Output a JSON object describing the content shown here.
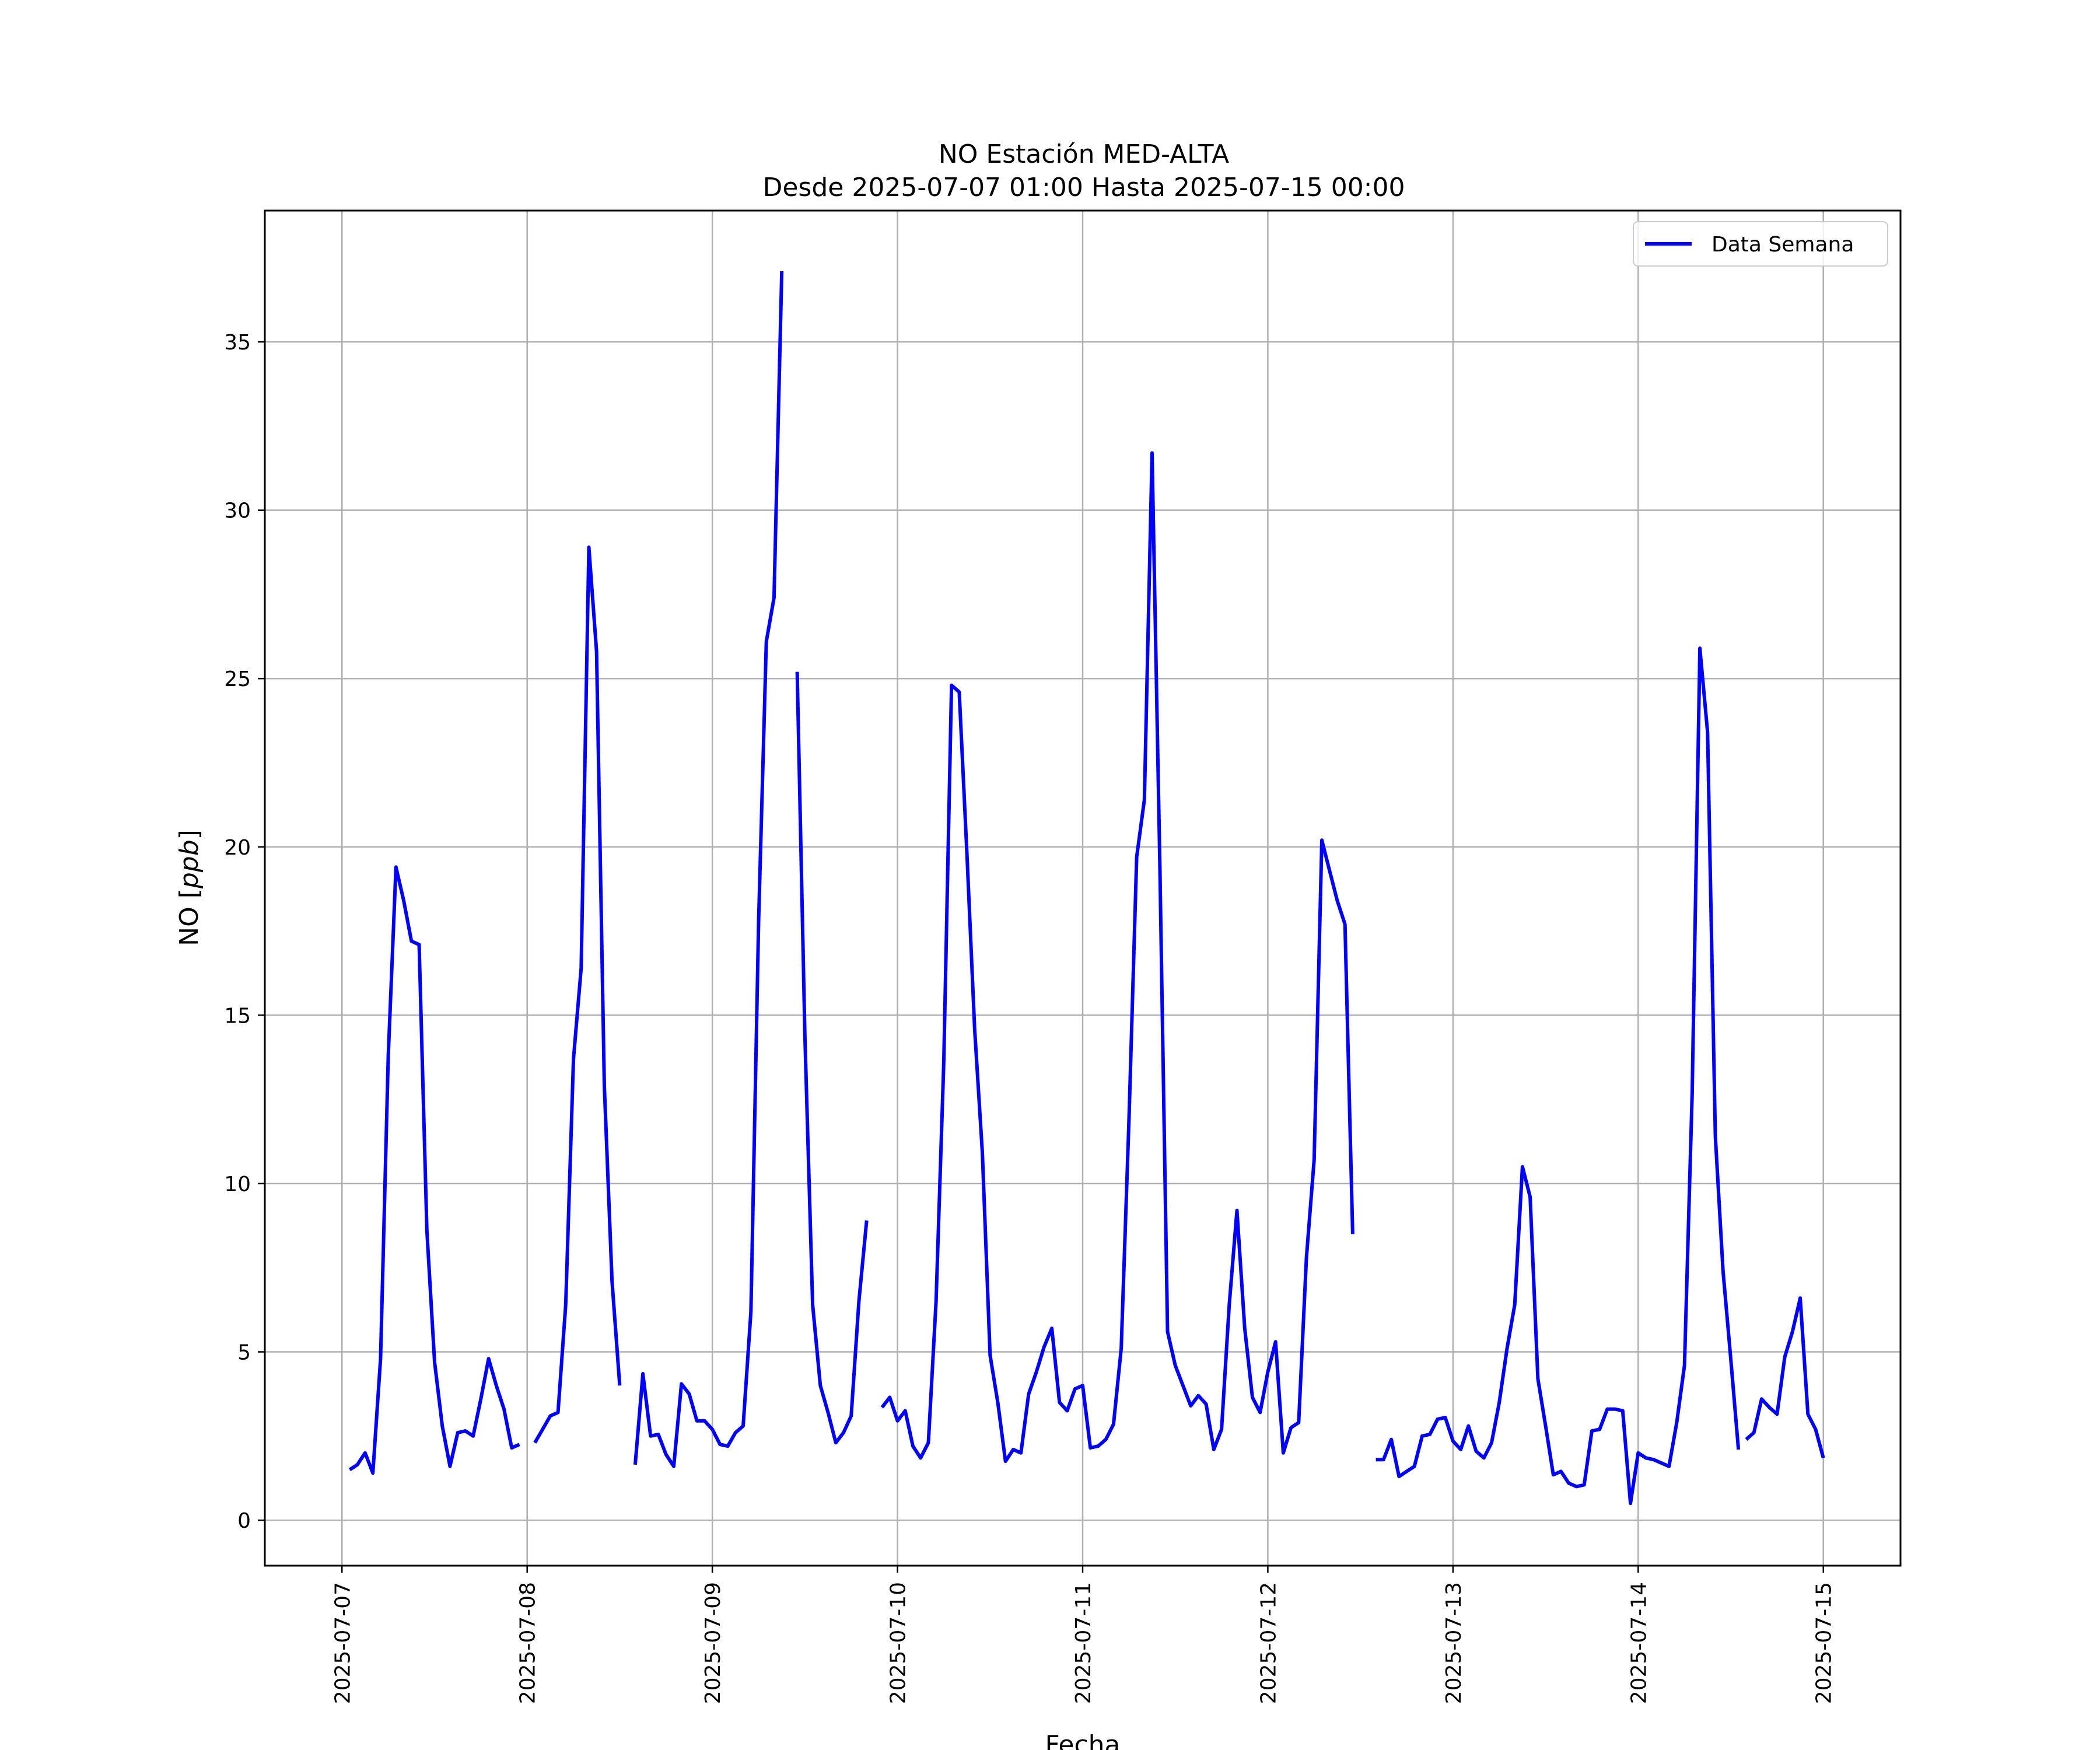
{
  "chart_data": {
    "type": "line",
    "title": "NO Estación MED-ALTA",
    "subtitle": "Desde 2025-07-07 01:00 Hasta 2025-07-15 00:00",
    "xlabel": "Fecha",
    "ylabel": "NO [ppb]",
    "ylabel_plain": "NO [",
    "ylabel_italic": "ppb",
    "ylabel_close": "]",
    "xlim": [
      "2025-07-06 14:00",
      "2025-07-15 10:00"
    ],
    "ylim": [
      -1.35,
      38.9
    ],
    "x_ticks": [
      "2025-07-07",
      "2025-07-08",
      "2025-07-09",
      "2025-07-10",
      "2025-07-11",
      "2025-07-12",
      "2025-07-13",
      "2025-07-14",
      "2025-07-15"
    ],
    "y_ticks": [
      0,
      5,
      10,
      15,
      20,
      25,
      30,
      35
    ],
    "y_tick_labels": [
      "0",
      "5",
      "10",
      "15",
      "20",
      "25",
      "30",
      "35"
    ],
    "grid": true,
    "legend_position": "top-right",
    "line_color": "#0000ff",
    "series": [
      {
        "name": "Data Semana",
        "segments": [
          {
            "start": "2025-07-07 01:00",
            "values": [
              1.5,
              1.65,
              2.0,
              1.4,
              4.8,
              13.8,
              19.4,
              18.4,
              17.2,
              17.1,
              8.6,
              4.7,
              2.8,
              1.6,
              2.6,
              2.65,
              2.5,
              3.6,
              4.8,
              4.0,
              3.3,
              2.15,
              2.25
            ]
          },
          {
            "start": "2025-07-08 01:00",
            "values": [
              2.3,
              2.7,
              3.1,
              3.2,
              6.4,
              13.7,
              16.4,
              28.9,
              25.8,
              12.9,
              7.1,
              4.0
            ]
          },
          {
            "start": "2025-07-08 14:00",
            "values": [
              1.65,
              4.35,
              2.5,
              2.55,
              1.95,
              1.6,
              4.05,
              3.75,
              2.95,
              2.95,
              2.7,
              2.25,
              2.2,
              2.6,
              2.8,
              6.2,
              17.8,
              26.1,
              27.4,
              37.1
            ]
          },
          {
            "start": "2025-07-09 11:00",
            "values": [
              25.2,
              14.4,
              6.4,
              4.0,
              3.2,
              2.3,
              2.6,
              3.1,
              6.5,
              8.9
            ]
          },
          {
            "start": "2025-07-09 22:00",
            "values": [
              3.35,
              3.65,
              2.95,
              3.25,
              2.2,
              1.85,
              2.3,
              6.5,
              13.6,
              24.8,
              24.6,
              19.8,
              14.6,
              10.9,
              4.9,
              3.5,
              1.75,
              2.1,
              2.0,
              3.75,
              4.4,
              5.15,
              5.7,
              3.5,
              3.25,
              3.9,
              4.0,
              2.15,
              2.2,
              2.4,
              2.85,
              5.1,
              11.9,
              19.7,
              21.4,
              31.7,
              19.5,
              5.6,
              4.6,
              4.0,
              3.4,
              3.7,
              3.45,
              2.1,
              2.7,
              6.4,
              9.2,
              5.7,
              3.65,
              3.2,
              4.4,
              5.3,
              2.0,
              2.75,
              2.9,
              7.8,
              10.7,
              20.2,
              19.3,
              18.4,
              17.7,
              8.5
            ]
          },
          {
            "start": "2025-07-12 14:00",
            "values": [
              1.8,
              1.8,
              2.4,
              1.3,
              1.45,
              1.6,
              2.5,
              2.55,
              3.0,
              3.05,
              2.35,
              2.1,
              2.8,
              2.05,
              1.85,
              2.3,
              3.5,
              5.1,
              6.4,
              10.5,
              9.6,
              4.2,
              2.8,
              1.35,
              1.45,
              1.1,
              1.0,
              1.05,
              2.65,
              2.7,
              3.3,
              3.3,
              3.25,
              0.5,
              2.0,
              1.85,
              1.8,
              1.7,
              1.6,
              2.9,
              4.6,
              12.7,
              25.9,
              23.4,
              11.4,
              7.4,
              4.8,
              2.1
            ]
          },
          {
            "start": "2025-07-14 14:00",
            "values": [
              2.4,
              2.6,
              3.6,
              3.35,
              3.15,
              4.85,
              5.6,
              6.6,
              3.15,
              2.7,
              1.85
            ]
          }
        ]
      }
    ]
  }
}
